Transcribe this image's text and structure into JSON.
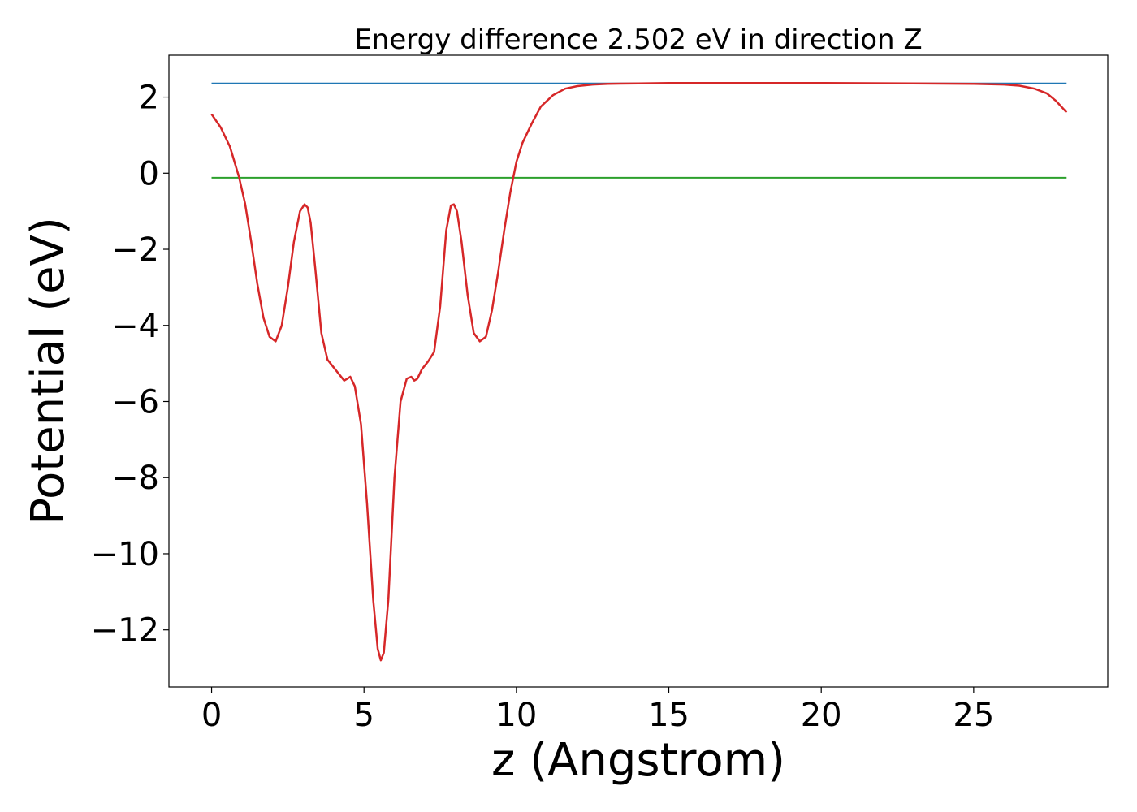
{
  "chart_data": {
    "type": "line",
    "title": "Energy difference 2.502 eV in direction Z",
    "xlabel": "z (Angstrom)",
    "ylabel": "Potential (eV)",
    "xlim": [
      -1.4,
      29.4
    ],
    "ylim": [
      -13.5,
      3.1
    ],
    "x_ticks": [
      0,
      5,
      10,
      15,
      20,
      25
    ],
    "x_tick_labels": [
      "0",
      "5",
      "10",
      "15",
      "20",
      "25"
    ],
    "y_ticks": [
      2,
      0,
      -2,
      -4,
      -6,
      -8,
      -10,
      -12
    ],
    "y_tick_labels": [
      "2",
      "0",
      "−2",
      "−4",
      "−6",
      "−8",
      "−10",
      "−12"
    ],
    "grid": false,
    "series": [
      {
        "color": "#1f77b4",
        "x": [
          0,
          28.05
        ],
        "y": [
          2.36,
          2.36
        ]
      },
      {
        "color": "#2ca02c",
        "x": [
          0,
          28.05
        ],
        "y": [
          -0.12,
          -0.12
        ]
      },
      {
        "color": "#d62728",
        "x": [
          0,
          0.3,
          0.6,
          0.9,
          1.1,
          1.3,
          1.5,
          1.7,
          1.9,
          2.1,
          2.3,
          2.5,
          2.7,
          2.9,
          3.05,
          3.15,
          3.25,
          3.4,
          3.6,
          3.8,
          4.0,
          4.2,
          4.35,
          4.45,
          4.55,
          4.7,
          4.9,
          5.1,
          5.3,
          5.45,
          5.55,
          5.65,
          5.8,
          6.0,
          6.2,
          6.4,
          6.55,
          6.65,
          6.75,
          6.9,
          7.1,
          7.3,
          7.5,
          7.7,
          7.85,
          7.95,
          8.05,
          8.2,
          8.4,
          8.6,
          8.8,
          9.0,
          9.2,
          9.4,
          9.6,
          9.8,
          10.0,
          10.2,
          10.5,
          10.8,
          11.2,
          11.6,
          12.0,
          12.5,
          13.0,
          14.0,
          15.0,
          17.0,
          20.0,
          23.0,
          25.0,
          26.0,
          26.5,
          27.0,
          27.4,
          27.7,
          28.05
        ],
        "y": [
          1.55,
          1.2,
          0.7,
          -0.1,
          -0.8,
          -1.8,
          -2.9,
          -3.8,
          -4.3,
          -4.42,
          -4.0,
          -3.0,
          -1.8,
          -1.0,
          -0.82,
          -0.9,
          -1.3,
          -2.5,
          -4.2,
          -4.9,
          -5.1,
          -5.3,
          -5.45,
          -5.4,
          -5.35,
          -5.6,
          -6.6,
          -8.7,
          -11.2,
          -12.5,
          -12.8,
          -12.6,
          -11.2,
          -8.0,
          -6.0,
          -5.4,
          -5.35,
          -5.45,
          -5.4,
          -5.15,
          -4.95,
          -4.7,
          -3.5,
          -1.5,
          -0.85,
          -0.82,
          -1.0,
          -1.8,
          -3.2,
          -4.2,
          -4.42,
          -4.3,
          -3.6,
          -2.6,
          -1.5,
          -0.5,
          0.3,
          0.8,
          1.3,
          1.75,
          2.05,
          2.22,
          2.29,
          2.33,
          2.35,
          2.36,
          2.37,
          2.37,
          2.37,
          2.36,
          2.35,
          2.33,
          2.3,
          2.22,
          2.1,
          1.9,
          1.6
        ]
      }
    ]
  }
}
